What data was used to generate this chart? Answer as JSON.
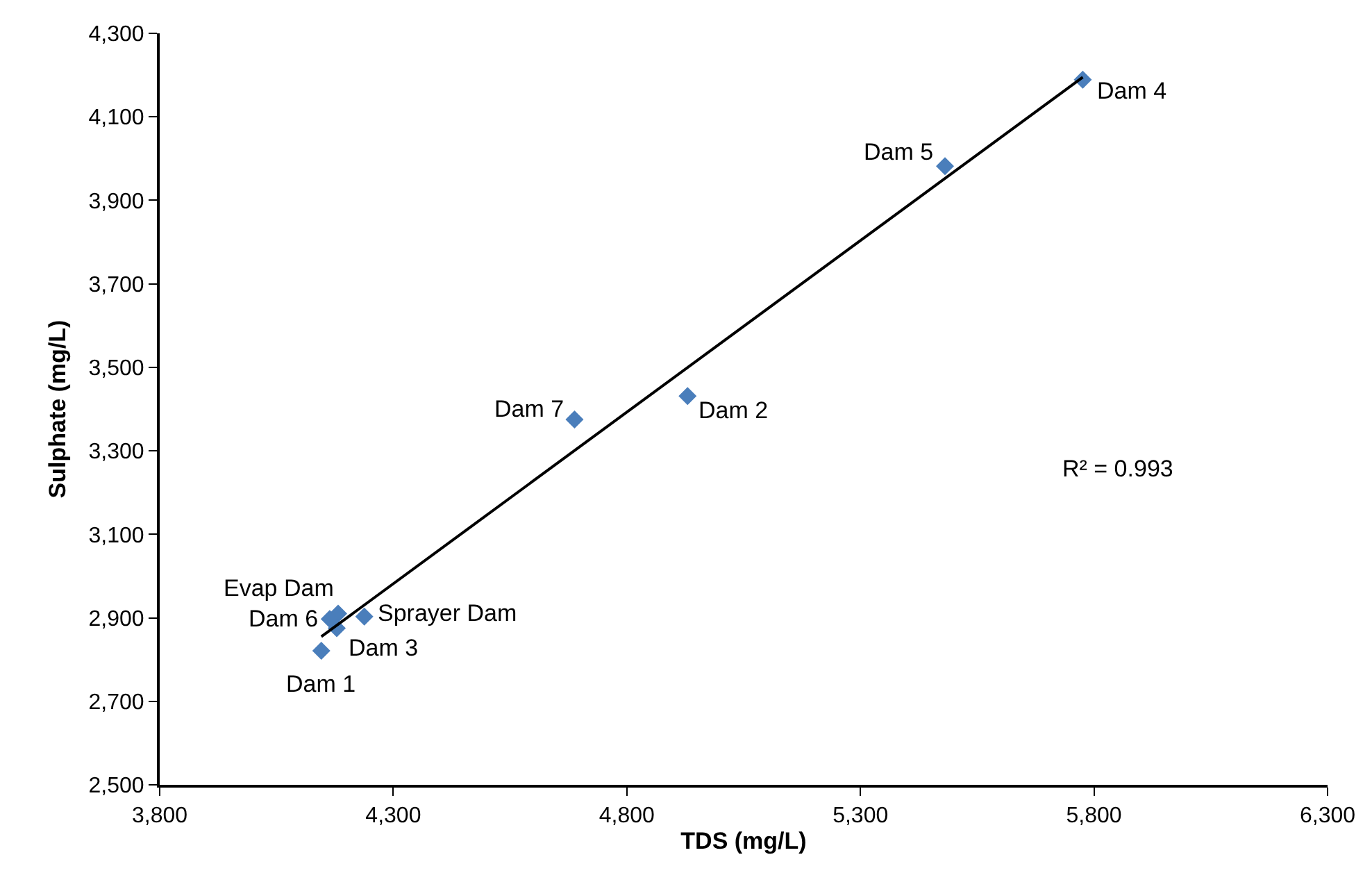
{
  "chart_data": {
    "type": "scatter",
    "xlabel": "TDS (mg/L)",
    "ylabel": "Sulphate (mg/L)",
    "x": [
      5776,
      5481,
      4930,
      4688,
      4238,
      4182,
      4164,
      4179,
      4146
    ],
    "series": [
      {
        "color": "#4a7ebb",
        "values": [
          4189,
          3982,
          3431,
          3375,
          2903,
          2910,
          2897,
          2875,
          2821
        ]
      },
      {
        "type": "line",
        "color": "#000000",
        "x": [
          4146,
          5776
        ],
        "values": [
          2855,
          4195
        ],
        "marker": "none"
      }
    ],
    "marker": "diamond",
    "xlim": [
      3800,
      6300
    ],
    "xticks": [
      {
        "value": 3800,
        "label": "3,800"
      },
      {
        "value": 4300,
        "label": "4,300"
      },
      {
        "value": 4800,
        "label": "4,800"
      },
      {
        "value": 5300,
        "label": "5,300"
      },
      {
        "value": 5800,
        "label": "5,800"
      },
      {
        "value": 6300,
        "label": "6,300"
      }
    ],
    "ylim": [
      2500,
      4300
    ],
    "yticks": [
      {
        "value": 2500,
        "label": "2,500"
      },
      {
        "value": 2700,
        "label": "2,700"
      },
      {
        "value": 2900,
        "label": "2,900"
      },
      {
        "value": 3100,
        "label": "3,100"
      },
      {
        "value": 3300,
        "label": "3,300"
      },
      {
        "value": 3500,
        "label": "3,500"
      },
      {
        "value": 3700,
        "label": "3,700"
      },
      {
        "value": 3900,
        "label": "3,900"
      },
      {
        "value": 4100,
        "label": "4,100"
      },
      {
        "value": 4300,
        "label": "4,300"
      }
    ],
    "annotations": [
      {
        "text": "Dam 4",
        "x": 5776,
        "y": 4189
      },
      {
        "text": "Dam 5",
        "x": 5481,
        "y": 3982
      },
      {
        "text": "Dam 2",
        "x": 4930,
        "y": 3431
      },
      {
        "text": "Dam 7",
        "x": 4688,
        "y": 3375
      },
      {
        "text": "Sprayer Dam",
        "x": 4238,
        "y": 2903
      },
      {
        "text": "Evap Dam",
        "x": 4182,
        "y": 2910
      },
      {
        "text": "Dam 6",
        "x": 4164,
        "y": 2897
      },
      {
        "text": "Dam 3",
        "x": 4179,
        "y": 2875
      },
      {
        "text": "Dam 1",
        "x": 4146,
        "y": 2821
      },
      "R² = 0.993"
    ]
  }
}
